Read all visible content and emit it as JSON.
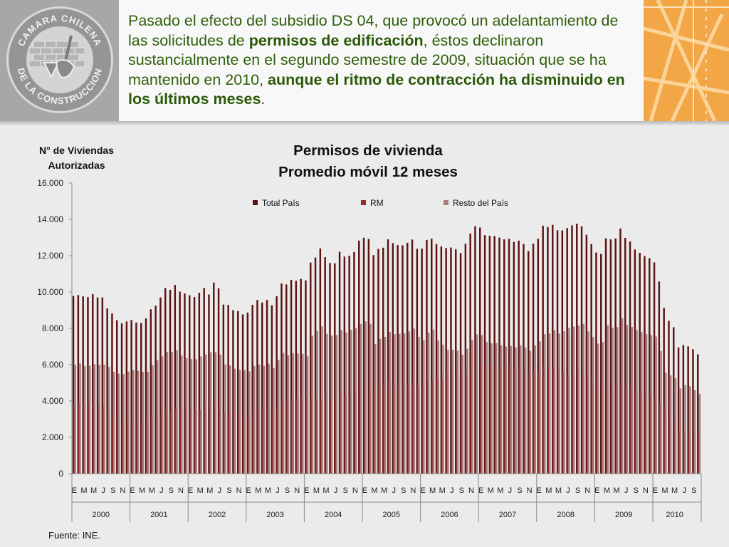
{
  "header": {
    "text_1": "Pasado el efecto del subsidio DS 04, que provocó un adelantamiento de las solicitudes de ",
    "bold_1": "permisos de edificación",
    "text_2": ", éstos declinaron sustancialmente en el segundo semestre de 2009, situación que se ha mantenido en 2010, ",
    "bold_2": "aunque el ritmo de contracción ha disminuido en los últimos meses",
    "text_3": "."
  },
  "logo": {
    "top_text": "CAMARA CHILENA",
    "bottom_text": "DE LA CONSTRUCCION"
  },
  "source": "Fuente: INE.",
  "colors": {
    "total": "#5c1212",
    "rm": "#8e2f2f",
    "resto": "#aa7d7d",
    "green_text": "#2f5f0a",
    "orange": "#f3a646"
  },
  "chart_data": {
    "type": "bar",
    "title": "Permisos de vivienda",
    "subtitle": "Promedio móvil 12 meses",
    "ylabel": "N° de Viviendas Autorizadas",
    "xlabel": "",
    "ylim": [
      0,
      16000
    ],
    "yticks": [
      "0",
      "2.000",
      "4.000",
      "6.000",
      "8.000",
      "10.000",
      "12.000",
      "14.000",
      "16.000"
    ],
    "grid": false,
    "legend_position": "top",
    "month_labels": [
      "E",
      "M",
      "M",
      "J",
      "S",
      "N"
    ],
    "years": [
      "2000",
      "2001",
      "2002",
      "2003",
      "2004",
      "2005",
      "2006",
      "2007",
      "2008",
      "2009",
      "2010"
    ],
    "months_per_year": [
      12,
      12,
      12,
      12,
      12,
      12,
      12,
      12,
      12,
      12,
      9
    ],
    "series": [
      {
        "name": "Total País",
        "values": [
          9780,
          9830,
          9760,
          9720,
          9880,
          9700,
          9700,
          9100,
          8820,
          8450,
          8280,
          8380,
          8460,
          8320,
          8300,
          8550,
          9050,
          9250,
          9700,
          10220,
          10120,
          10390,
          10020,
          9920,
          9820,
          9720,
          9960,
          10220,
          9860,
          10520,
          10210,
          9310,
          9290,
          9000,
          8950,
          8770,
          8870,
          9290,
          9560,
          9420,
          9560,
          9270,
          9770,
          10470,
          10420,
          10670,
          10620,
          10720,
          10640,
          11620,
          11900,
          12400,
          11920,
          11600,
          11580,
          12220,
          11950,
          12000,
          12200,
          12830,
          12990,
          12920,
          12030,
          12370,
          12440,
          12900,
          12690,
          12580,
          12570,
          12710,
          12890,
          12380,
          12390,
          12870,
          12940,
          12650,
          12510,
          12420,
          12450,
          12350,
          12150,
          12660,
          13220,
          13620,
          13550,
          13130,
          13100,
          13080,
          13000,
          12900,
          12930,
          12760,
          12830,
          12650,
          12260,
          12660,
          12930,
          13650,
          13580,
          13700,
          13400,
          13390,
          13520,
          13670,
          13760,
          13620,
          13150,
          12640,
          12170,
          12100,
          12960,
          12900,
          12950,
          13500,
          12980,
          12780,
          12340,
          12160,
          11980,
          11870,
          11630,
          10580,
          9130,
          8410,
          8060,
          6950,
          7080,
          7010,
          6850,
          6570
        ]
      },
      {
        "name": "RM",
        "values": [
          3800,
          3860,
          3910,
          3880,
          3940,
          3760,
          3720,
          3520,
          3270,
          3010,
          2820,
          2770,
          2810,
          2900,
          2860,
          2970,
          3120,
          3000,
          3250,
          3530,
          3480,
          3590,
          3570,
          3580,
          3560,
          3490,
          3520,
          3680,
          3720,
          3870,
          3710,
          3340,
          3390,
          3270,
          3230,
          3130,
          3190,
          3330,
          3560,
          3650,
          3600,
          3500,
          3550,
          3920,
          3980,
          4090,
          4110,
          4160,
          4180,
          4130,
          4070,
          4100,
          4230,
          4000,
          4030,
          4420,
          4370,
          4330,
          4450,
          4640,
          4780,
          4770,
          4800,
          4950,
          4980,
          5090,
          5010,
          4920,
          4880,
          4870,
          4960,
          4830,
          4880,
          5050,
          5100,
          5190,
          5230,
          5600,
          5620,
          5580,
          5640,
          5700,
          5820,
          5940,
          5980,
          5980,
          5980,
          5920,
          5960,
          5970,
          5890,
          5830,
          5810,
          5770,
          5550,
          5580,
          5670,
          5950,
          5880,
          5820,
          5700,
          5590,
          5400,
          5580,
          5700,
          5560,
          5350,
          5200,
          5030,
          4900,
          4790,
          4790,
          4870,
          4930,
          4870,
          4760,
          4620,
          4460,
          4350,
          4300,
          4140,
          3880,
          3630,
          3040,
          2930,
          2300,
          2250,
          2250,
          2300,
          2200
        ]
      },
      {
        "name": "Resto del País",
        "values": [
          6000,
          6070,
          5930,
          5940,
          6020,
          6000,
          6000,
          5880,
          5610,
          5510,
          5480,
          5620,
          5700,
          5660,
          5600,
          5610,
          5970,
          6260,
          6460,
          6700,
          6690,
          6800,
          6500,
          6380,
          6310,
          6300,
          6460,
          6560,
          6680,
          6700,
          6560,
          6020,
          5960,
          5780,
          5720,
          5690,
          5630,
          5920,
          6000,
          5930,
          6050,
          5820,
          6270,
          6650,
          6510,
          6630,
          6620,
          6600,
          6460,
          7590,
          7850,
          8100,
          7700,
          7600,
          7630,
          7900,
          7770,
          7920,
          8010,
          8240,
          8380,
          8250,
          7130,
          7420,
          7530,
          7800,
          7680,
          7700,
          7720,
          7830,
          7990,
          7530,
          7360,
          7760,
          7930,
          7330,
          7100,
          6820,
          6830,
          6770,
          6540,
          6870,
          7360,
          7670,
          7630,
          7250,
          7180,
          7190,
          7070,
          7000,
          7030,
          6960,
          7060,
          6930,
          6760,
          7060,
          7290,
          7680,
          7720,
          7900,
          7720,
          7840,
          8030,
          8100,
          8160,
          8240,
          7840,
          7520,
          7160,
          7250,
          8170,
          8040,
          8070,
          8550,
          8180,
          8080,
          7900,
          7790,
          7680,
          7630,
          7550,
          6750,
          5560,
          5410,
          5250,
          4690,
          4880,
          4810,
          4600,
          4380
        ]
      }
    ]
  }
}
